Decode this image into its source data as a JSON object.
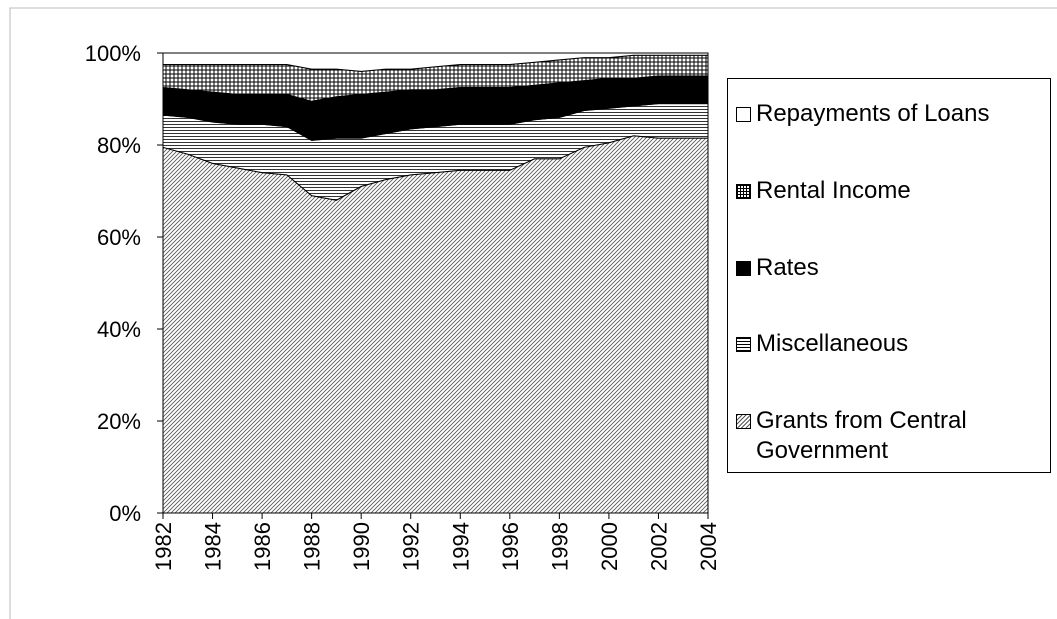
{
  "chart_data": {
    "type": "stacked-area-percent",
    "x": [
      1982,
      1983,
      1984,
      1985,
      1986,
      1987,
      1988,
      1989,
      1990,
      1991,
      1992,
      1993,
      1994,
      1995,
      1996,
      1997,
      1998,
      1999,
      2000,
      2001,
      2002,
      2003,
      2004
    ],
    "xlim": [
      1982,
      2004
    ],
    "xticks": [
      1982,
      1984,
      1986,
      1988,
      1990,
      1992,
      1994,
      1996,
      1998,
      2000,
      2002,
      2004
    ],
    "ylim": [
      0,
      100
    ],
    "yticks": [
      {
        "value": 0,
        "label": "0%"
      },
      {
        "value": 20,
        "label": "20%"
      },
      {
        "value": 40,
        "label": "40%"
      },
      {
        "value": 60,
        "label": "60%"
      },
      {
        "value": 80,
        "label": "80%"
      },
      {
        "value": 100,
        "label": "100%"
      }
    ],
    "legend": "right",
    "series": [
      {
        "name": "Grants from Central Government",
        "color": "#000000",
        "pattern": "diagonal",
        "values": [
          79.5,
          78,
          76,
          75,
          74,
          73.5,
          69,
          68,
          71,
          72.5,
          73.5,
          74,
          74.5,
          74.5,
          74.5,
          77,
          77,
          79.5,
          80.5,
          82,
          81.5,
          81.5,
          81.5
        ]
      },
      {
        "name": "Miscellaneous",
        "color": "#000000",
        "pattern": "horizontal",
        "values": [
          7,
          8,
          9,
          9.5,
          10.5,
          10.5,
          12,
          13.5,
          10.5,
          10,
          10,
          10,
          10,
          10,
          10,
          8.5,
          9,
          8,
          7.5,
          6.5,
          7.5,
          7.5,
          7.5
        ]
      },
      {
        "name": "Rates",
        "color": "#000000",
        "pattern": "solid",
        "values": [
          6,
          6,
          6.5,
          6.5,
          6.5,
          7,
          8.5,
          9,
          9.5,
          9,
          8.5,
          8,
          8,
          8,
          8,
          7.5,
          7.5,
          6.5,
          6.5,
          6,
          6,
          6,
          6
        ]
      },
      {
        "name": "Rental Income",
        "color": "#000000",
        "pattern": "crosshatch",
        "values": [
          5,
          5.5,
          6,
          6.5,
          6.5,
          6.5,
          7,
          6,
          5,
          5,
          4.5,
          5,
          5,
          5,
          5,
          5,
          5,
          5,
          4.5,
          5,
          4.5,
          4.5,
          4.5
        ]
      },
      {
        "name": "Repayments of Loans",
        "color": "#000000",
        "pattern": "none",
        "values": [
          2.5,
          2.5,
          2.5,
          2.5,
          2.5,
          2.5,
          3.5,
          3.5,
          4,
          3.5,
          3.5,
          3,
          2.5,
          2.5,
          2.5,
          2,
          1.5,
          1,
          1,
          0.5,
          0.5,
          0.5,
          0.5
        ]
      }
    ]
  }
}
